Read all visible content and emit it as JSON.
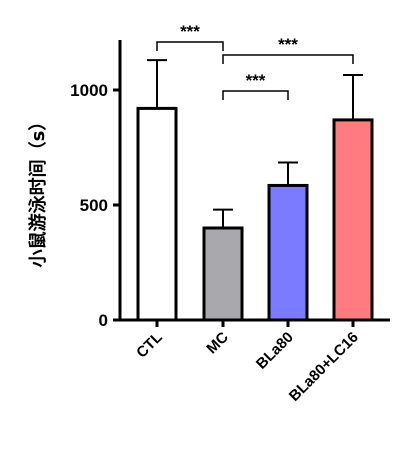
{
  "chart_data": {
    "type": "bar",
    "title": "",
    "xlabel": "",
    "ylabel": "小鼠游泳时间（s）",
    "categories": [
      "CTL",
      "MC",
      "BLa80",
      "BLa80+LC16"
    ],
    "values": [
      920,
      400,
      585,
      870
    ],
    "errors": [
      210,
      80,
      100,
      195
    ],
    "colors": [
      "#ffffff",
      "#a8a8ad",
      "#7b7bff",
      "#ff7b80"
    ],
    "ylim": [
      0,
      1250
    ],
    "yticks": [
      0,
      500,
      1000
    ],
    "grid": false,
    "legend": "none",
    "significance": [
      {
        "from": "CTL",
        "to": "MC",
        "label": "***"
      },
      {
        "from": "MC",
        "to": "BLa80",
        "label": "***"
      },
      {
        "from": "MC",
        "to": "BLa80+LC16",
        "label": "***"
      }
    ]
  }
}
